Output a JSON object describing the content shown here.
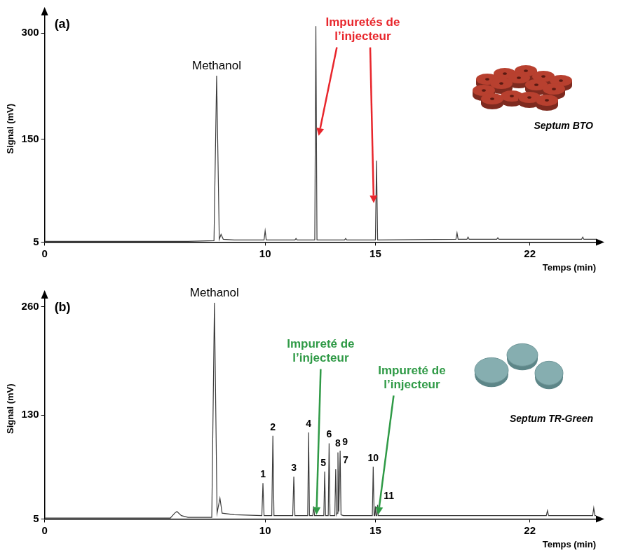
{
  "chart_data": [
    {
      "type": "line",
      "panel": "(a)",
      "x_label": "Temps (min)",
      "y_label": "Signal (mV)",
      "xlim": [
        0,
        25
      ],
      "xticks": [
        0,
        10,
        15,
        22
      ],
      "ylim": [
        5,
        325
      ],
      "yticks": [
        5,
        150,
        300
      ],
      "grid": false,
      "color": "#3c3c3c",
      "x": [
        0,
        6.5,
        7.68,
        7.8,
        7.92,
        8.0,
        8.1,
        8.6,
        9.95,
        10.0,
        10.05,
        11.35,
        11.4,
        11.45,
        12.25,
        12.3,
        12.35,
        13.6,
        13.65,
        13.7,
        15.0,
        15.05,
        15.1,
        18.65,
        18.7,
        18.75,
        19.15,
        19.2,
        19.25,
        20.5,
        20.55,
        20.6,
        24.35,
        24.4,
        24.45,
        25
      ],
      "values": [
        6,
        6,
        7,
        240,
        9,
        16,
        9,
        8,
        8,
        21,
        8,
        8,
        10,
        8,
        8,
        310,
        8,
        8,
        10,
        8,
        8,
        120,
        8,
        9,
        18,
        9,
        9,
        12,
        9,
        9,
        11,
        9,
        9,
        12,
        9,
        9
      ],
      "peak_names": [
        {
          "text": "Methanol",
          "x": 7.8,
          "y": 240
        }
      ],
      "peak_numbers": [],
      "annotations": [
        {
          "text": "Impuretés de l’injecteur",
          "color": "#e8262c",
          "targets": [
            {
              "x": 12.3,
              "y": 310
            },
            {
              "x": 15.05,
              "y": 120
            }
          ]
        }
      ],
      "septum_label": "Septum BTO"
    },
    {
      "type": "line",
      "panel": "(b)",
      "x_label": "Temps (min)",
      "y_label": "Signal (mV)",
      "xlim": [
        0,
        25
      ],
      "xticks": [
        0,
        10,
        15,
        22
      ],
      "ylim": [
        5,
        270
      ],
      "yticks": [
        5,
        130,
        260
      ],
      "grid": false,
      "color": "#3c3c3c",
      "x": [
        0,
        5.7,
        5.9,
        6.0,
        6.2,
        6.5,
        7.58,
        7.7,
        7.82,
        7.95,
        8.05,
        8.6,
        9.85,
        9.9,
        9.95,
        10.3,
        10.35,
        10.4,
        11.25,
        11.3,
        11.35,
        11.93,
        11.97,
        12.01,
        12.16,
        12.2,
        12.24,
        12.66,
        12.7,
        12.74,
        12.86,
        12.9,
        12.94,
        13.16,
        13.2,
        13.24,
        13.27,
        13.3,
        13.34,
        13.4,
        13.44,
        13.55,
        14.86,
        14.9,
        14.94,
        14.97,
        15.0,
        15.03,
        15.07,
        15.1,
        15.13,
        22.75,
        22.8,
        22.85,
        24.85,
        24.9,
        24.95,
        25
      ],
      "values": [
        6,
        6,
        12,
        14,
        9,
        7,
        7,
        265,
        12,
        30,
        12,
        10,
        9,
        48,
        9,
        9,
        105,
        9,
        9,
        56,
        9,
        9,
        109,
        9,
        9,
        20,
        9,
        9,
        62,
        9,
        9,
        96,
        9,
        9,
        65,
        10,
        12,
        85,
        14,
        87,
        10,
        9,
        9,
        68,
        9,
        9,
        20,
        9,
        9,
        22,
        9,
        9,
        15,
        9,
        9,
        18,
        9,
        9
      ],
      "peak_names": [
        {
          "text": "Methanol",
          "x": 7.7,
          "y": 265
        }
      ],
      "peak_numbers": [
        {
          "text": "1",
          "x": 9.9,
          "y": 48
        },
        {
          "text": "2",
          "x": 10.35,
          "y": 105
        },
        {
          "text": "3",
          "x": 11.3,
          "y": 56
        },
        {
          "text": "4",
          "x": 11.97,
          "y": 109
        },
        {
          "text": "5",
          "x": 12.7,
          "y": 62
        },
        {
          "text": "6",
          "x": 12.9,
          "y": 96
        },
        {
          "text": "7",
          "x": 13.2,
          "y": 65
        },
        {
          "text": "8",
          "x": 13.3,
          "y": 85
        },
        {
          "text": "9",
          "x": 13.4,
          "y": 87
        },
        {
          "text": "10",
          "x": 14.9,
          "y": 68
        },
        {
          "text": "11",
          "x": 15.1,
          "y": 22
        }
      ],
      "annotations": [
        {
          "text": "Impureté de l’injecteur",
          "color": "#2f9a46",
          "targets": [
            {
              "x": 12.2,
              "y": 20
            }
          ]
        },
        {
          "text": "Impureté de l’injecteur",
          "color": "#2f9a46",
          "targets": [
            {
              "x": 15.0,
              "y": 20
            }
          ]
        }
      ],
      "septum_label": "Septum TR-Green"
    }
  ]
}
